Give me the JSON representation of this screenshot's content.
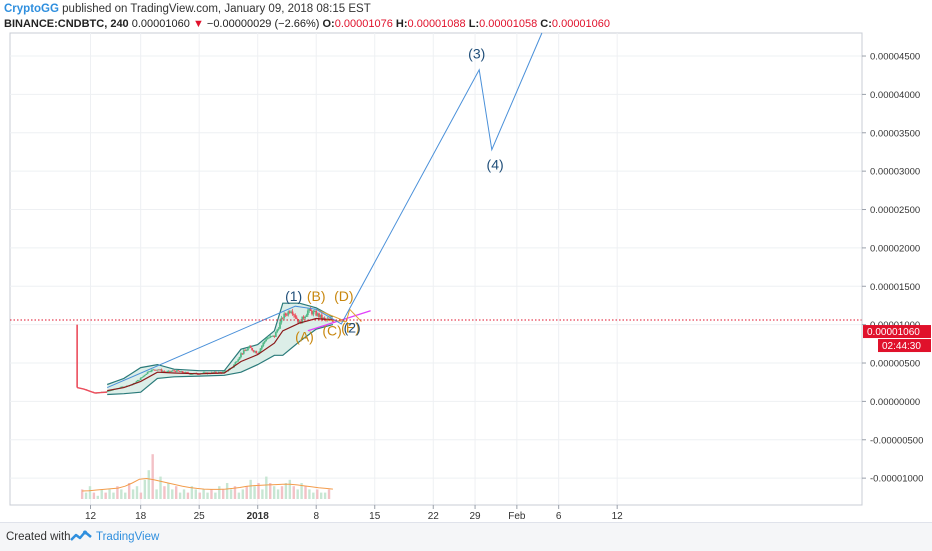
{
  "header": {
    "publisher": "CryptoGG",
    "published_text": "published on TradingView.com, January 09, 2018 08:15 EST",
    "symbol": "BINANCE:CNDBTC, 240",
    "last": "0.00001060",
    "change_arrow": "▼",
    "change": "−0.00000029 (−2.66%)",
    "open_label": "O:",
    "open": "0.00001076",
    "high_label": "H:",
    "high": "0.00001088",
    "low_label": "L:",
    "low": "0.00001058",
    "close_label": "C:",
    "close": "0.00001060"
  },
  "footer": {
    "created_with": "Created with",
    "brand": "TradingView"
  },
  "colors": {
    "up": "#53b987",
    "down": "#eb4d5c",
    "wave_line": "#4a90d9",
    "band": "#2a7a7a",
    "band_fill": "#d8ece6",
    "moving_average": "#8b1a1a",
    "trend_magenta": "#e040fb",
    "volume_ma": "#f39c4b",
    "wave_label_blue": "#1f4e79",
    "wave_label_orange": "#c8870e",
    "price_line": "#e0112b"
  },
  "chart_data": {
    "type": "candlestick",
    "ylim": [
      -1.35e-05,
      4.8e-05
    ],
    "y_ticks": [
      -1e-05,
      -5e-06,
      0,
      5e-06,
      1e-05,
      1.5e-05,
      2e-05,
      2.5e-05,
      3e-05,
      3.5e-05,
      4e-05,
      4.5e-05
    ],
    "y_tick_labels": [
      "-0.00001000",
      "-0.00000500",
      "0.00000000",
      "0.00000500",
      "0.00001000",
      "0.00001500",
      "0.00002000",
      "0.00002500",
      "0.00003000",
      "0.00003500",
      "0.00004000",
      "0.00004500"
    ],
    "x_ticks": [
      {
        "day": 12,
        "label": "12"
      },
      {
        "day": 18,
        "label": "18"
      },
      {
        "day": 25,
        "label": "25"
      },
      {
        "day": 32,
        "label": "2018"
      },
      {
        "day": 39,
        "label": "8"
      },
      {
        "day": 46,
        "label": "15"
      },
      {
        "day": 53,
        "label": "22"
      },
      {
        "day": 58,
        "label": "29"
      },
      {
        "day": 63,
        "label": "Feb"
      },
      {
        "day": 68,
        "label": "6"
      },
      {
        "day": 75,
        "label": "12"
      }
    ],
    "current_price": 1.06e-05,
    "current_price_label": "0.00001060",
    "countdown_label": "02:44:30",
    "price_path": [
      [
        10.4,
        1e-05
      ],
      [
        10.4,
        1.8e-06
      ],
      [
        11.2,
        1.6e-06
      ],
      [
        12.5,
        1.1e-06
      ],
      [
        14,
        1.3e-06
      ],
      [
        15.5,
        1.8e-06
      ],
      [
        17,
        2.2e-06
      ],
      [
        18,
        3e-06
      ],
      [
        19,
        4e-06
      ],
      [
        20,
        4.2e-06
      ],
      [
        21,
        3.8e-06
      ],
      [
        22,
        4e-06
      ],
      [
        24,
        3.6e-06
      ],
      [
        26,
        3.7e-06
      ],
      [
        28,
        3.8e-06
      ],
      [
        29,
        4.5e-06
      ],
      [
        30,
        6.2e-06
      ],
      [
        31,
        7e-06
      ],
      [
        32,
        6.3e-06
      ],
      [
        33,
        8.2e-06
      ],
      [
        34,
        8.5e-06
      ],
      [
        35,
        1.1e-05
      ],
      [
        36,
        1.2e-05
      ],
      [
        37,
        1.02e-05
      ],
      [
        38,
        1.18e-05
      ],
      [
        39,
        1.14e-05
      ],
      [
        40,
        1.06e-05
      ],
      [
        41,
        1.06e-05
      ]
    ],
    "bollinger_upper": [
      [
        14,
        2.2e-06
      ],
      [
        16,
        3e-06
      ],
      [
        18,
        4.4e-06
      ],
      [
        20,
        4.8e-06
      ],
      [
        22,
        4.2e-06
      ],
      [
        25,
        4e-06
      ],
      [
        28,
        4e-06
      ],
      [
        30,
        6.8e-06
      ],
      [
        32,
        7.4e-06
      ],
      [
        34,
        9.2e-06
      ],
      [
        35,
        1.28e-05
      ],
      [
        37,
        1.28e-05
      ],
      [
        39,
        1.22e-05
      ],
      [
        41,
        1.1e-05
      ]
    ],
    "bollinger_lower": [
      [
        14,
        9e-07
      ],
      [
        16,
        1e-06
      ],
      [
        18,
        1.2e-06
      ],
      [
        20,
        3e-06
      ],
      [
        22,
        3.2e-06
      ],
      [
        25,
        3.3e-06
      ],
      [
        28,
        3.4e-06
      ],
      [
        30,
        3.8e-06
      ],
      [
        32,
        4.8e-06
      ],
      [
        34,
        6e-06
      ],
      [
        35,
        6e-06
      ],
      [
        37,
        7.8e-06
      ],
      [
        39,
        9.4e-06
      ],
      [
        41,
        1e-05
      ]
    ],
    "moving_average": [
      [
        14,
        1.4e-06
      ],
      [
        16,
        1.8e-06
      ],
      [
        18,
        2.6e-06
      ],
      [
        20,
        3.8e-06
      ],
      [
        22,
        3.7e-06
      ],
      [
        25,
        3.6e-06
      ],
      [
        28,
        3.7e-06
      ],
      [
        30,
        5.2e-06
      ],
      [
        32,
        6.1e-06
      ],
      [
        34,
        7.6e-06
      ],
      [
        35,
        9.2e-06
      ],
      [
        37,
        1.02e-05
      ],
      [
        39,
        1.08e-05
      ],
      [
        41,
        1.06e-05
      ]
    ],
    "wave_projection": [
      [
        14,
        1.8e-06
      ],
      [
        36.5,
        1.24e-05
      ],
      [
        39,
        1.2e-05
      ],
      [
        42,
        1.01e-05
      ],
      [
        58.5,
        4.32e-05
      ],
      [
        60,
        3.28e-05
      ],
      [
        66,
        4.8e-05
      ]
    ],
    "trend_magenta": [
      [
        38,
        9.2e-06
      ],
      [
        45.5,
        1.18e-05
      ]
    ],
    "wave_labels": [
      {
        "text": "(1)",
        "day": 36.3,
        "price": 1.31e-05,
        "color": "blue"
      },
      {
        "text": "(B)",
        "day": 39.0,
        "price": 1.31e-05,
        "color": "orange"
      },
      {
        "text": "(D)",
        "day": 42.3,
        "price": 1.31e-05,
        "color": "orange"
      },
      {
        "text": "(A)",
        "day": 37.6,
        "price": 7.8e-06,
        "color": "orange"
      },
      {
        "text": "(C)",
        "day": 40.9,
        "price": 8.6e-06,
        "color": "orange"
      },
      {
        "text": "(E)",
        "day": 43.1,
        "price": 9e-06,
        "color": "orange"
      },
      {
        "text": "(2)",
        "day": 43.3,
        "price": 9e-06,
        "color": "blue"
      },
      {
        "text": "(3)",
        "day": 58.2,
        "price": 4.47e-05,
        "color": "blue"
      },
      {
        "text": "(4)",
        "day": 60.4,
        "price": 3.02e-05,
        "color": "blue"
      }
    ],
    "volume": [
      3,
      2,
      4,
      2,
      1,
      3,
      2,
      3,
      2,
      4,
      3,
      2,
      5,
      3,
      4,
      2,
      6,
      9,
      14,
      3,
      7,
      4,
      5,
      3,
      4,
      2,
      3,
      2,
      4,
      3,
      2,
      3,
      2,
      3,
      2,
      4,
      3,
      5,
      3,
      4,
      2,
      3,
      4,
      6,
      4,
      5,
      3,
      7,
      5,
      4,
      3,
      4,
      5,
      6,
      4,
      3,
      5,
      4,
      3,
      2,
      3,
      2,
      2,
      3
    ],
    "volume_ma": [
      2.5,
      2.6,
      2.8,
      3,
      3.2,
      3.4,
      4,
      5,
      6.2,
      6.4,
      6.0,
      5.5,
      5.0,
      4.5,
      4.0,
      3.6,
      3.3,
      3.1,
      3.0,
      3.0,
      3.1,
      3.3,
      3.6,
      4.0,
      4.2,
      4.3,
      4.4,
      4.5,
      4.6,
      4.6,
      4.4,
      4.1,
      3.8,
      3.5,
      3.3,
      3.1
    ]
  }
}
